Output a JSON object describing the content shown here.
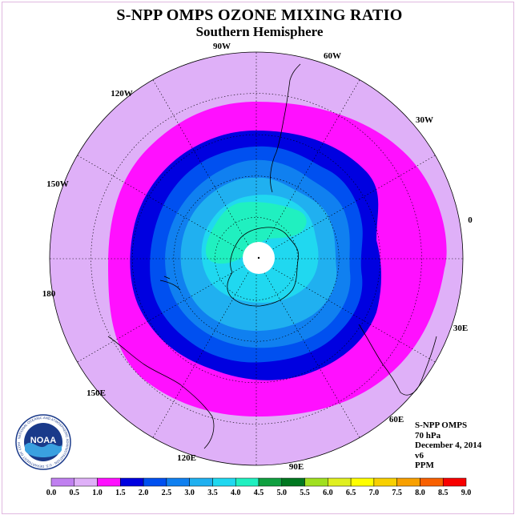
{
  "title": "S-NPP OMPS OZONE MIXING RATIO",
  "subtitle": "Southern Hemisphere",
  "logo_text": "NOAA",
  "logo_ring_text": "NATIONAL OCEANIC AND ATMOSPHERIC ADMINISTRATION · U.S. DEPARTMENT OF COMMERCE",
  "longitude_labels": [
    {
      "text": "90W"
    },
    {
      "text": "60W"
    },
    {
      "text": "120W"
    },
    {
      "text": "30W"
    },
    {
      "text": "150W"
    },
    {
      "text": "0"
    },
    {
      "text": "180"
    },
    {
      "text": "30E"
    },
    {
      "text": "150E"
    },
    {
      "text": "60E"
    },
    {
      "text": "120E"
    },
    {
      "text": "90E"
    }
  ],
  "info": {
    "instrument": "S-NPP OMPS",
    "level": "70 hPa",
    "date": "December 4, 2014",
    "version": "v6",
    "units": "PPM"
  },
  "colorbar": {
    "ticks": [
      "0.0",
      "0.5",
      "1.0",
      "1.5",
      "2.0",
      "2.5",
      "3.0",
      "3.5",
      "4.0",
      "4.5",
      "5.0",
      "5.5",
      "6.0",
      "6.5",
      "7.0",
      "7.5",
      "8.0",
      "8.5",
      "9.0"
    ],
    "colors": [
      "#c080f0",
      "#dfb0f8",
      "#ff10ff",
      "#0000e0",
      "#0050f0",
      "#1080f0",
      "#20b0f0",
      "#20d8f0",
      "#20f0c0",
      "#10a040",
      "#007820",
      "#a0e020",
      "#e0f020",
      "#ffff00",
      "#f8d000",
      "#f8a000",
      "#f86000",
      "#f80000",
      "#a05030"
    ]
  },
  "map_colors": {
    "background": "#dfb0f8",
    "band_1.0": "#ff10ff",
    "band_1.5": "#0000e0",
    "band_2.0": "#0050f0",
    "band_2.5": "#1080f0",
    "band_3.0": "#20b0f0",
    "band_3.5": "#20d8f0",
    "band_4.0": "#20f0c0",
    "pole": "#ffffff"
  }
}
